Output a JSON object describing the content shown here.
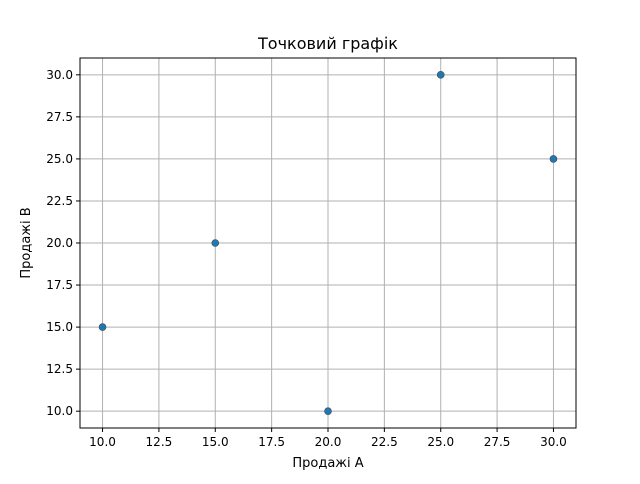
{
  "chart_data": {
    "type": "scatter",
    "title": "Точковий графік",
    "xlabel": "Продажі A",
    "ylabel": "Продажі B",
    "xlim": [
      9.0,
      31.0
    ],
    "ylim": [
      9.0,
      31.0
    ],
    "x_ticks": [
      10.0,
      12.5,
      15.0,
      17.5,
      20.0,
      22.5,
      25.0,
      27.5,
      30.0
    ],
    "y_ticks": [
      10.0,
      12.5,
      15.0,
      17.5,
      20.0,
      22.5,
      25.0,
      27.5,
      30.0
    ],
    "x_tick_labels": [
      "10.0",
      "12.5",
      "15.0",
      "17.5",
      "20.0",
      "22.5",
      "25.0",
      "27.5",
      "30.0"
    ],
    "y_tick_labels": [
      "10.0",
      "12.5",
      "15.0",
      "17.5",
      "20.0",
      "22.5",
      "25.0",
      "27.5",
      "30.0"
    ],
    "grid": true,
    "series": [
      {
        "x": [
          10,
          15,
          20,
          25,
          30
        ],
        "y": [
          15,
          20,
          10,
          30,
          25
        ],
        "color": "#1f77b4"
      }
    ]
  },
  "colors": {
    "grid": "#b0b0b0",
    "axis": "#000000",
    "marker_edge": "#4a4a4a"
  }
}
